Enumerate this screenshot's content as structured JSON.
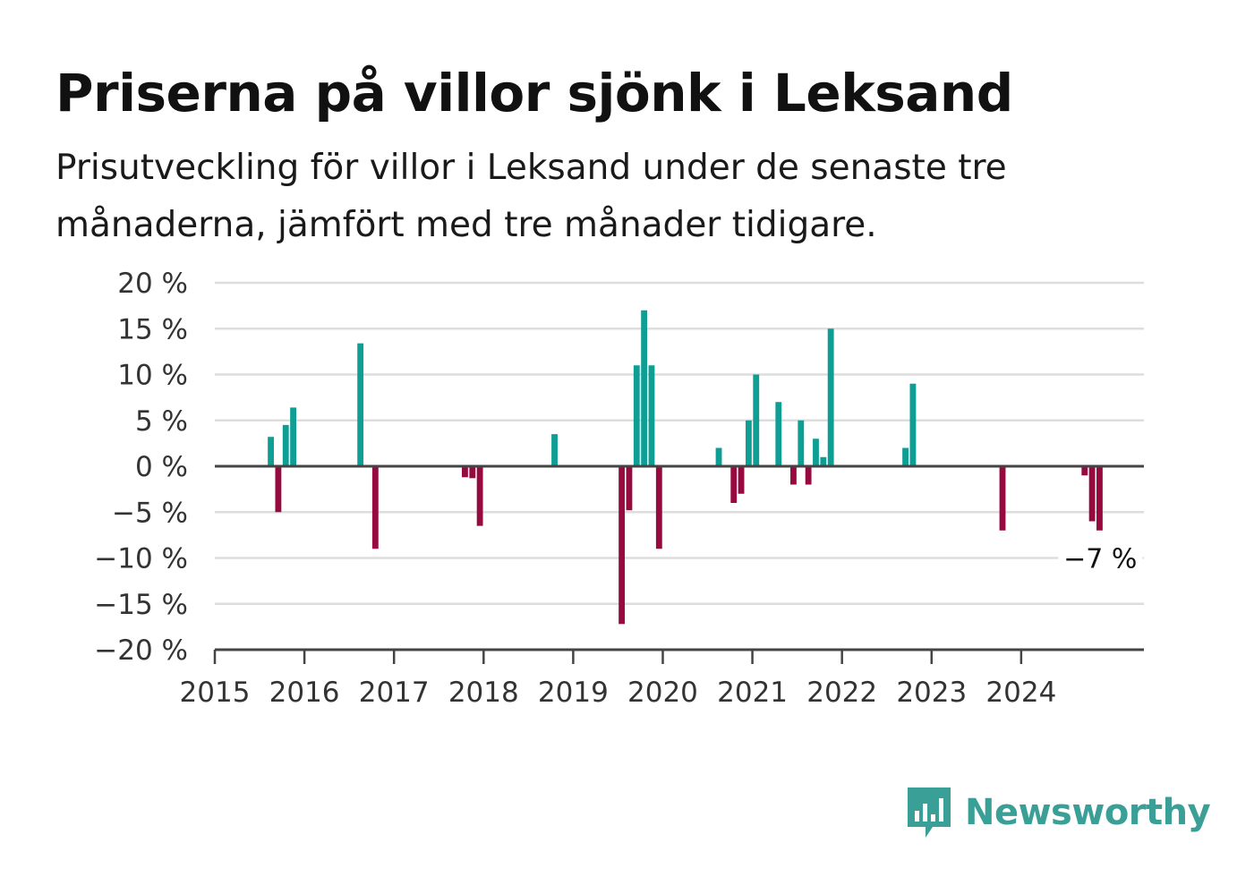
{
  "header": {
    "title": "Priserna på villor sjönk i Leksand",
    "subtitle": "Prisutveckling för villor i Leksand under de senaste tre månaderna, jämfört med tre månader tidigare."
  },
  "brand": {
    "name": "Newsworthy",
    "icon": "newsworthy-logo-icon",
    "color": "#3a9f96"
  },
  "colors": {
    "positive": "#0e9e94",
    "negative": "#960a3f",
    "grid": "#dddddd",
    "axis": "#444444"
  },
  "chart_data": {
    "type": "bar",
    "title": "Priserna på villor sjönk i Leksand",
    "xlabel": "",
    "ylabel": "",
    "ylim": [
      -20,
      20
    ],
    "xlim": [
      2015,
      2025.37
    ],
    "yticks": [
      {
        "value": 20,
        "label": "20 %"
      },
      {
        "value": 15,
        "label": "15 %"
      },
      {
        "value": 10,
        "label": "10 %"
      },
      {
        "value": 5,
        "label": "5 %"
      },
      {
        "value": 0,
        "label": "0 %"
      },
      {
        "value": -5,
        "label": "−5 %"
      },
      {
        "value": -10,
        "label": "−10 %"
      },
      {
        "value": -15,
        "label": "−15 %"
      },
      {
        "value": -20,
        "label": "−20 %"
      }
    ],
    "xticks": [
      {
        "value": 2015,
        "label": "2015"
      },
      {
        "value": 2016,
        "label": "2016"
      },
      {
        "value": 2017,
        "label": "2017"
      },
      {
        "value": 2018,
        "label": "2018"
      },
      {
        "value": 2019,
        "label": "2019"
      },
      {
        "value": 2020,
        "label": "2020"
      },
      {
        "value": 2021,
        "label": "2021"
      },
      {
        "value": 2022,
        "label": "2022"
      },
      {
        "value": 2023,
        "label": "2023"
      },
      {
        "value": 2024,
        "label": "2024"
      }
    ],
    "grid": true,
    "series": [
      {
        "points": [
          {
            "x": "2015-08",
            "y": 3.2
          },
          {
            "x": "2015-09",
            "y": -5.0
          },
          {
            "x": "2015-10",
            "y": 4.5
          },
          {
            "x": "2015-11",
            "y": 6.4
          },
          {
            "x": "2016-08",
            "y": 13.4
          },
          {
            "x": "2016-10",
            "y": -9.0
          },
          {
            "x": "2017-10",
            "y": -1.2
          },
          {
            "x": "2017-11",
            "y": -1.3
          },
          {
            "x": "2017-12",
            "y": -6.5
          },
          {
            "x": "2018-10",
            "y": 3.5
          },
          {
            "x": "2019-07",
            "y": -17.2
          },
          {
            "x": "2019-08",
            "y": -4.8
          },
          {
            "x": "2019-09",
            "y": 11.0
          },
          {
            "x": "2019-10",
            "y": 17.0
          },
          {
            "x": "2019-11",
            "y": 11.0
          },
          {
            "x": "2019-12",
            "y": -9.0
          },
          {
            "x": "2020-08",
            "y": 2.0
          },
          {
            "x": "2020-10",
            "y": -4.0
          },
          {
            "x": "2020-11",
            "y": -3.0
          },
          {
            "x": "2020-12",
            "y": 5.0
          },
          {
            "x": "2021-01",
            "y": 10.0
          },
          {
            "x": "2021-04",
            "y": 7.0
          },
          {
            "x": "2021-06",
            "y": -2.0
          },
          {
            "x": "2021-07",
            "y": 5.0
          },
          {
            "x": "2021-08",
            "y": -2.0
          },
          {
            "x": "2021-09",
            "y": 3.0
          },
          {
            "x": "2021-10",
            "y": 1.0
          },
          {
            "x": "2021-11",
            "y": 15.0
          },
          {
            "x": "2022-09",
            "y": 2.0
          },
          {
            "x": "2022-10",
            "y": 9.0
          },
          {
            "x": "2023-10",
            "y": -7.0
          },
          {
            "x": "2024-09",
            "y": -1.0
          },
          {
            "x": "2024-10",
            "y": -6.0
          },
          {
            "x": "2024-11",
            "y": -7.0
          }
        ]
      }
    ],
    "annotation": {
      "x": "2024-11",
      "y": -10,
      "label": "−7 %"
    }
  }
}
